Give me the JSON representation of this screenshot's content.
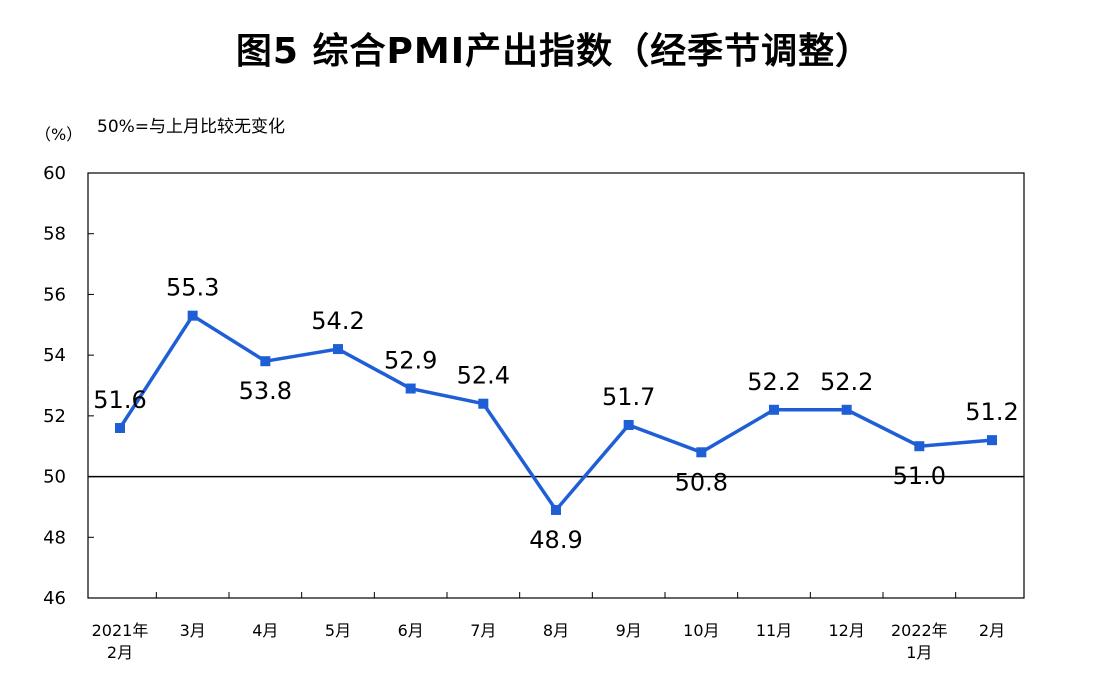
{
  "chart_data": {
    "type": "line",
    "title": "图5 综合PMI产出指数（经季节调整）",
    "ylabel": "（%）",
    "annotation": "50%=与上月比较无变化",
    "ylim": [
      46,
      60
    ],
    "yticks": [
      46,
      48,
      50,
      52,
      54,
      56,
      58,
      60
    ],
    "reference_line": 50,
    "grid": false,
    "categories": [
      [
        "2021年",
        "2月"
      ],
      [
        "3月"
      ],
      [
        "4月"
      ],
      [
        "5月"
      ],
      [
        "6月"
      ],
      [
        "7月"
      ],
      [
        "8月"
      ],
      [
        "9月"
      ],
      [
        "10月"
      ],
      [
        "11月"
      ],
      [
        "12月"
      ],
      [
        "2022年",
        "1月"
      ],
      [
        "2月"
      ]
    ],
    "series": [
      {
        "values": [
          51.6,
          55.3,
          53.8,
          54.2,
          52.9,
          52.4,
          48.9,
          51.7,
          50.8,
          52.2,
          52.2,
          51.0,
          51.2
        ],
        "labels": [
          "51.6",
          "55.3",
          "53.8",
          "54.2",
          "52.9",
          "52.4",
          "48.9",
          "51.7",
          "50.8",
          "52.2",
          "52.2",
          "51.0",
          "51.2"
        ],
        "color": "#1f5fd6"
      }
    ]
  }
}
